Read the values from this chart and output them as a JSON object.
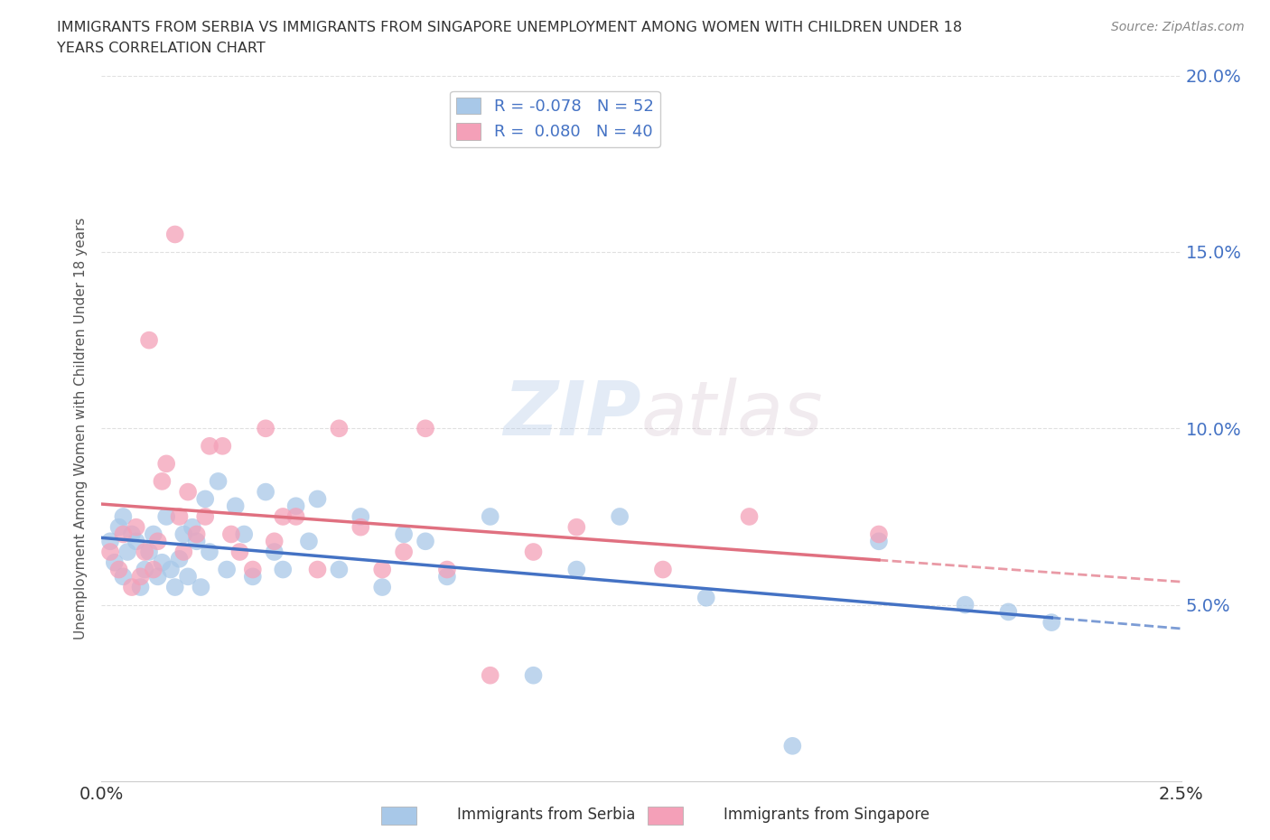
{
  "title_line1": "IMMIGRANTS FROM SERBIA VS IMMIGRANTS FROM SINGAPORE UNEMPLOYMENT AMONG WOMEN WITH CHILDREN UNDER 18",
  "title_line2": "YEARS CORRELATION CHART",
  "source": "Source: ZipAtlas.com",
  "ylabel": "Unemployment Among Women with Children Under 18 years",
  "xlim": [
    0.0,
    0.025
  ],
  "ylim": [
    0.0,
    0.2
  ],
  "xticks": [
    0.0,
    0.005,
    0.01,
    0.015,
    0.02,
    0.025
  ],
  "xticklabels": [
    "0.0%",
    "",
    "",
    "",
    "",
    "2.5%"
  ],
  "yticks": [
    0.0,
    0.05,
    0.1,
    0.15,
    0.2
  ],
  "yticklabels": [
    "",
    "5.0%",
    "10.0%",
    "15.0%",
    "20.0%"
  ],
  "serbia_color": "#a8c8e8",
  "singapore_color": "#f4a0b8",
  "serbia_R": -0.078,
  "serbia_N": 52,
  "singapore_R": 0.08,
  "singapore_N": 40,
  "serbia_scatter_x": [
    0.0002,
    0.0003,
    0.0004,
    0.0005,
    0.0005,
    0.0006,
    0.0007,
    0.0008,
    0.0009,
    0.001,
    0.0011,
    0.0012,
    0.0013,
    0.0014,
    0.0015,
    0.0016,
    0.0017,
    0.0018,
    0.0019,
    0.002,
    0.0021,
    0.0022,
    0.0023,
    0.0024,
    0.0025,
    0.0027,
    0.0029,
    0.0031,
    0.0033,
    0.0035,
    0.0038,
    0.004,
    0.0042,
    0.0045,
    0.0048,
    0.005,
    0.0055,
    0.006,
    0.0065,
    0.007,
    0.0075,
    0.008,
    0.009,
    0.01,
    0.011,
    0.012,
    0.014,
    0.016,
    0.018,
    0.02,
    0.021,
    0.022
  ],
  "serbia_scatter_y": [
    0.068,
    0.062,
    0.072,
    0.075,
    0.058,
    0.065,
    0.07,
    0.068,
    0.055,
    0.06,
    0.065,
    0.07,
    0.058,
    0.062,
    0.075,
    0.06,
    0.055,
    0.063,
    0.07,
    0.058,
    0.072,
    0.068,
    0.055,
    0.08,
    0.065,
    0.085,
    0.06,
    0.078,
    0.07,
    0.058,
    0.082,
    0.065,
    0.06,
    0.078,
    0.068,
    0.08,
    0.06,
    0.075,
    0.055,
    0.07,
    0.068,
    0.058,
    0.075,
    0.03,
    0.06,
    0.075,
    0.052,
    0.01,
    0.068,
    0.05,
    0.048,
    0.045
  ],
  "singapore_scatter_x": [
    0.0002,
    0.0004,
    0.0005,
    0.0007,
    0.0008,
    0.0009,
    0.001,
    0.0011,
    0.0012,
    0.0013,
    0.0014,
    0.0015,
    0.0017,
    0.0018,
    0.0019,
    0.002,
    0.0022,
    0.0024,
    0.0025,
    0.0028,
    0.003,
    0.0032,
    0.0035,
    0.0038,
    0.004,
    0.0042,
    0.0045,
    0.005,
    0.0055,
    0.006,
    0.0065,
    0.007,
    0.0075,
    0.008,
    0.009,
    0.01,
    0.011,
    0.013,
    0.015,
    0.018
  ],
  "singapore_scatter_y": [
    0.065,
    0.06,
    0.07,
    0.055,
    0.072,
    0.058,
    0.065,
    0.125,
    0.06,
    0.068,
    0.085,
    0.09,
    0.155,
    0.075,
    0.065,
    0.082,
    0.07,
    0.075,
    0.095,
    0.095,
    0.07,
    0.065,
    0.06,
    0.1,
    0.068,
    0.075,
    0.075,
    0.06,
    0.1,
    0.072,
    0.06,
    0.065,
    0.1,
    0.06,
    0.03,
    0.065,
    0.072,
    0.06,
    0.075,
    0.07
  ],
  "background_color": "#ffffff",
  "grid_color": "#e0e0e0",
  "watermark_text": "ZIPatlas",
  "legend_serbia_label": "R = -0.078   N = 52",
  "legend_singapore_label": "R =  0.080   N = 40",
  "serbia_trend_color": "#4472c4",
  "singapore_trend_color": "#e07080",
  "tick_color": "#4472c4",
  "serbia_trend_extend_x": 0.025,
  "singapore_trend_extend_x": 0.025
}
